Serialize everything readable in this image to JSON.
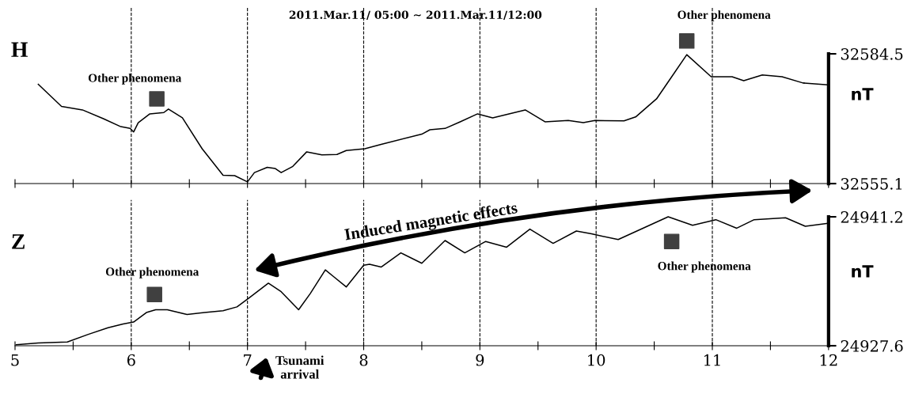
{
  "chart_data": [
    {
      "type": "line",
      "title": "2011.Mar.11/ 05:00 ∼ 2011.Mar.11/12:00",
      "subtitle": "H",
      "ylabel": "nT",
      "xlim": [
        5,
        12
      ],
      "xticks": [
        5,
        {
          "value": 5.5,
          "label": null
        },
        6,
        {
          "value": 6.5,
          "label": null
        },
        7,
        {
          "value": 7.5,
          "label": null
        },
        8,
        {
          "value": 8.5,
          "label": null
        },
        9,
        {
          "value": 9.5,
          "label": null
        },
        10,
        {
          "value": 10.5,
          "label": null
        },
        11,
        {
          "value": 11.5,
          "label": null
        },
        12
      ],
      "ylim": [
        32555.1,
        32595
      ],
      "yticks": [
        32555.1,
        32584.5
      ],
      "tick_labels": "y",
      "grid": "x",
      "series": [
        {
          "color": "#000000",
          "x": [
            5.2,
            5.4,
            5.58,
            5.76,
            5.91,
            5.99,
            6.02,
            6.06,
            6.16,
            6.28,
            6.32,
            6.44,
            6.61,
            6.79,
            6.89,
            7.0,
            7.06,
            7.17,
            7.24,
            7.29,
            7.39,
            7.51,
            7.64,
            7.77,
            7.85,
            8.01,
            8.15,
            8.5,
            8.57,
            8.7,
            8.83,
            8.98,
            9.11,
            9.39,
            9.56,
            9.76,
            9.89,
            9.99,
            10.24,
            10.34,
            10.52,
            10.64,
            10.78,
            10.99,
            11.17,
            11.27,
            11.43,
            11.6,
            11.78,
            11.99
          ],
          "values": [
            32577.6,
            32572.6,
            32571.8,
            32569.8,
            32568.0,
            32567.6,
            32566.8,
            32568.9,
            32570.9,
            32571.2,
            32572.0,
            32570.0,
            32563.0,
            32557.0,
            32556.9,
            32555.5,
            32557.6,
            32558.8,
            32558.5,
            32557.6,
            32559.0,
            32562.3,
            32561.6,
            32561.7,
            32562.6,
            32563.0,
            32564.0,
            32566.3,
            32567.3,
            32567.6,
            32569.1,
            32570.9,
            32570.0,
            32571.8,
            32569.1,
            32569.4,
            32568.9,
            32569.4,
            32569.3,
            32570.2,
            32574.3,
            32578.9,
            32584.3,
            32579.3,
            32579.3,
            32578.4,
            32579.7,
            32579.3,
            32577.9,
            32577.5
          ]
        },
        {
          "type": "scatter",
          "marker": "square",
          "color": "#404040",
          "x": [
            6.22,
            10.78
          ],
          "values": [
            32574.3,
            32587.4
          ]
        }
      ],
      "annotations": [
        "Other phenomena",
        "Other phenomena"
      ]
    },
    {
      "type": "line",
      "subtitle": "Z",
      "ylabel": "nT",
      "xlim": [
        5,
        12
      ],
      "xticks": [
        5,
        {
          "value": 5.5,
          "label": null
        },
        6,
        {
          "value": 6.5,
          "label": null
        },
        7,
        {
          "value": 7.5,
          "label": null
        },
        8,
        {
          "value": 8.5,
          "label": null
        },
        9,
        {
          "value": 9.5,
          "label": null
        },
        10,
        {
          "value": 10.5,
          "label": null
        },
        11,
        {
          "value": 11.5,
          "label": null
        },
        12
      ],
      "ylim": [
        24927.6,
        24943
      ],
      "yticks": [
        24927.6,
        24941.2
      ],
      "grid": "x",
      "series": [
        {
          "color": "#000000",
          "x": [
            5.01,
            5.2,
            5.45,
            5.63,
            5.8,
            5.93,
            6.02,
            6.13,
            6.21,
            6.31,
            6.48,
            6.63,
            6.79,
            6.91,
            7.02,
            7.18,
            7.29,
            7.44,
            7.54,
            7.67,
            7.74,
            7.85,
            8.0,
            8.05,
            8.15,
            8.32,
            8.5,
            8.7,
            8.87,
            9.05,
            9.23,
            9.43,
            9.63,
            9.83,
            9.96,
            10.19,
            10.62,
            10.83,
            11.03,
            11.21,
            11.36,
            11.63,
            11.8,
            11.99
          ],
          "values": [
            24927.7,
            24927.9,
            24928.0,
            24928.8,
            24929.5,
            24929.9,
            24930.1,
            24931.1,
            24931.4,
            24931.4,
            24930.9,
            24931.1,
            24931.3,
            24931.7,
            24932.7,
            24934.2,
            24933.3,
            24931.4,
            24933.1,
            24935.6,
            24934.9,
            24933.8,
            24936.1,
            24936.2,
            24935.9,
            24937.4,
            24936.3,
            24938.7,
            24937.4,
            24938.6,
            24938.0,
            24939.9,
            24938.4,
            24939.7,
            24939.4,
            24938.8,
            24941.2,
            24940.3,
            24940.9,
            24940.0,
            24940.9,
            24941.1,
            24940.2,
            24940.5
          ]
        },
        {
          "type": "scatter",
          "marker": "square",
          "color": "#404040",
          "x": [
            6.2,
            10.65
          ],
          "values": [
            24933.0,
            24938.6
          ]
        }
      ],
      "annotations": [
        "Other phenomena",
        "Other phenomena",
        "Induced magnetic effects",
        "Tsunami\narrival"
      ]
    }
  ]
}
